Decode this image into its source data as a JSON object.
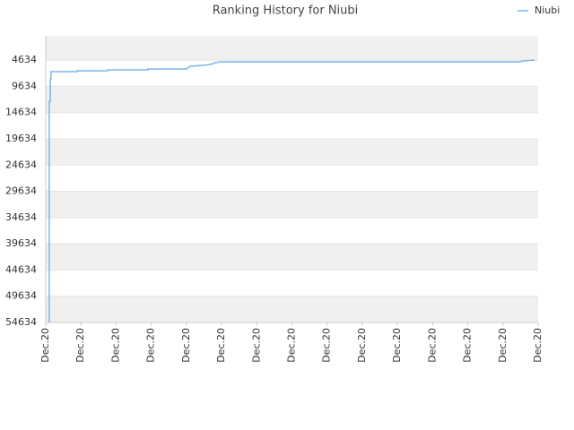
{
  "chart_data": {
    "type": "line",
    "title": "Ranking History for Niubi",
    "x": [
      0.1,
      0.1,
      0.13,
      0.13,
      0.15,
      0.15,
      0.89,
      0.89,
      1.76,
      1.76,
      2.91,
      2.91,
      4.0,
      4.11,
      4.44,
      4.69,
      4.82,
      4.95,
      13.49,
      13.57,
      13.9
    ],
    "series": [
      {
        "name": "Niubi",
        "color": "#7cb5ec",
        "values": [
          54634,
          12460,
          12460,
          8190,
          8190,
          6830,
          6830,
          6660,
          6660,
          6490,
          6490,
          6310,
          6310,
          5800,
          5630,
          5460,
          5120,
          4950,
          4950,
          4780,
          4610
        ]
      }
    ],
    "xlim": [
      0,
      14
    ],
    "xticks": [
      {
        "value": 0,
        "label": "Dec.20"
      },
      {
        "value": 1,
        "label": "Dec.20"
      },
      {
        "value": 2,
        "label": "Dec.20"
      },
      {
        "value": 3,
        "label": "Dec.20"
      },
      {
        "value": 4,
        "label": "Dec.20"
      },
      {
        "value": 5,
        "label": "Dec.20"
      },
      {
        "value": 6,
        "label": "Dec.20"
      },
      {
        "value": 7,
        "label": "Dec.20"
      },
      {
        "value": 8,
        "label": "Dec.20"
      },
      {
        "value": 9,
        "label": "Dec.20"
      },
      {
        "value": 10,
        "label": "Dec.20"
      },
      {
        "value": 11,
        "label": "Dec.20"
      },
      {
        "value": 12,
        "label": "Dec.20"
      },
      {
        "value": 13,
        "label": "Dec.20"
      },
      {
        "value": 14,
        "label": "Dec.20"
      }
    ],
    "ylim": [
      54634,
      0
    ],
    "yticks": [
      4634,
      9634,
      14634,
      19634,
      24634,
      29634,
      34634,
      39634,
      44634,
      49634,
      54634
    ],
    "grid": true,
    "legend": "top-right"
  }
}
